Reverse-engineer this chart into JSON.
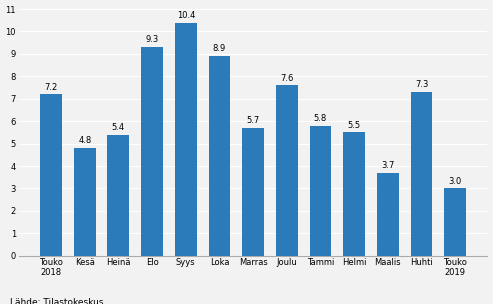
{
  "categories": [
    "Touko\n2018",
    "Kesä",
    "Heinä",
    "Elo",
    "Syys",
    "Loka",
    "Marras",
    "Joulu",
    "Tammi",
    "Helmi",
    "Maalis",
    "Huhti",
    "Touko\n2019"
  ],
  "values": [
    7.2,
    4.8,
    5.4,
    9.3,
    10.4,
    8.9,
    5.7,
    7.6,
    5.8,
    5.5,
    3.7,
    7.3,
    3.0
  ],
  "bar_color": "#2b7bba",
  "ylim": [
    0,
    11
  ],
  "yticks": [
    0,
    1,
    2,
    3,
    4,
    5,
    6,
    7,
    8,
    9,
    10,
    11
  ],
  "footnote": "Lähde: Tilastokeskus",
  "bar_width": 0.65,
  "label_fontsize": 6.0,
  "tick_fontsize": 6.0,
  "footnote_fontsize": 6.5,
  "background_color": "#f2f2f2",
  "grid_color": "#ffffff",
  "spine_color": "#aaaaaa"
}
